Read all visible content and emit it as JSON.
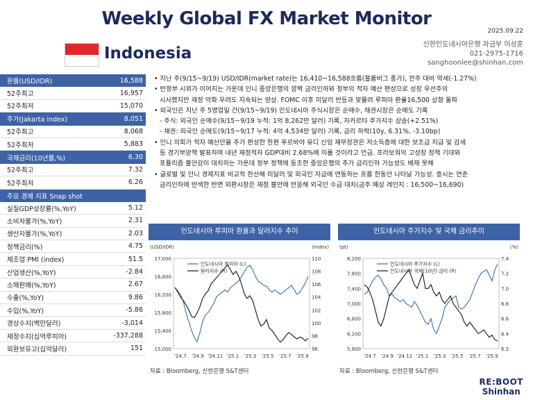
{
  "header": {
    "title": "Weekly Global FX Market Monitor",
    "date": "2025.09.22",
    "country": "Indonesia",
    "contact": [
      "신한인도네시아은행 자금부 이상훈",
      "021-2975-1716",
      "sanghoonlee@shinhan.com"
    ]
  },
  "left_table": [
    {
      "label": "환율(USD/IDR)",
      "value": "16,588",
      "head": true
    },
    {
      "label": "52주최고",
      "value": "16,957"
    },
    {
      "label": "52주최저",
      "value": "15,070"
    },
    {
      "label": "주가(Jakarta index)",
      "value": "8,051",
      "head": true
    },
    {
      "label": "52주최고",
      "value": "8,068"
    },
    {
      "label": "52주최저",
      "value": "5,883"
    },
    {
      "label": "국채금리(10년물,%)",
      "value": "6.30",
      "head": true
    },
    {
      "label": "52주최고",
      "value": "7.32"
    },
    {
      "label": "52주최저",
      "value": "6.26"
    },
    {
      "label": "주요 경제 지표 Snap shot",
      "value": "",
      "head": true
    },
    {
      "label": "실질GDP성장률(%,YoY)",
      "value": "5.12"
    },
    {
      "label": "소비자물가(%,YoY)",
      "value": "2.31"
    },
    {
      "label": "생산자물가(%,YoY)",
      "value": "2.03"
    },
    {
      "label": "정책금리(%)",
      "value": "4.75"
    },
    {
      "label": "제조업 PMI (index)",
      "value": "51.5"
    },
    {
      "label": "산업생산(%,YoY)",
      "value": "-2.84"
    },
    {
      "label": "소매판매(%,YoY)",
      "value": "2.67"
    },
    {
      "label": "수출(%,YoY)",
      "value": "9.86"
    },
    {
      "label": "수입(%,YoY)",
      "value": "-5.86"
    },
    {
      "label": "경상수지(백만달러)",
      "value": "-3,014"
    },
    {
      "label": "재정수지(십억루피아)",
      "value": "-337,288"
    },
    {
      "label": "외환보유고(십억달러)",
      "value": "151"
    }
  ],
  "bullets": [
    {
      "text": "• 지난 주(9/15~9/19) USD/IDR(market rate)는 16,410~16,588흐름(블룸버그 종가), 전주 대비 약세(-1.27%)",
      "indent": false
    },
    {
      "text": "• 반정부 시위가 이어지는 가운데 인니 중앙은행의 깜짝 금리인하와 정부의 적자 예산 편성으로 성장 우선주의",
      "indent": false
    },
    {
      "text": "시사했지만 재정 악화 우려도 지속되는 양상. FOMC 이후 미달러 반등과 맞물려 루피아 환율16,500 상향 돌파",
      "indent": true
    },
    {
      "text": "• 외국인은 지난 주 5영업일 간(9/15~9/19) 인도네시아 주식시장은 순매수, 채권시장은 순매도 기록",
      "indent": false
    },
    {
      "text": "- 주식: 외국인 순매수(9/15~9/19 누적: 1억 8,262만 달러) 기록, 자카르타 주가지수 상승(+2.51%)",
      "indent": true
    },
    {
      "text": "- 채권: 외국인 순매도(9/15~9/17 누적: 4억 4,534만 달러) 기록, 금리 하락(10y, 6.31%, -3.10bp)",
      "indent": true
    },
    {
      "text": "• 인니 의회가 적자 예산안을 추가 편성한 한편 푸르바야 유디 신임 재무장관은 저소득층에 대한 보조금 지급 및 감세",
      "indent": false
    },
    {
      "text": "등 경기부양책 발표하며 내년 재정적자 GDP대비 2.68%에 이를 것이라고 언급. 프라보워의 고성장 정책 기대와",
      "indent": true
    },
    {
      "text": "포퓰리즘 불안감이 대치하는 가운데 정부 정책에 동조한 중앙은행의 추가 금리인하 가능성도 배제 못해",
      "indent": true
    },
    {
      "text": "• 글로벌 및 인니 경제지표 비교적 한산해 미달러 및 외국인 자금에 연동하는 흐름 한동안 나타날 가능성. 증시는 연준",
      "indent": false
    },
    {
      "text": "금리인하에 반색한 반면 외환시장은 재정 불안에 반응해 외국인 수급 대치(금주 예상 레인지 : 16,500~16,690)",
      "indent": true
    }
  ],
  "chart_data": [
    {
      "type": "line",
      "title": "인도네시아 루피아 환율과 달러지수 추이",
      "ylabel_left": "(USD/IDR)",
      "ylabel_right": "(index)",
      "x_ticks": [
        "'24.7",
        "'24.9",
        "'24.11",
        "'25.1",
        "'25.3",
        "'25.5",
        "'25.7",
        "'25.9"
      ],
      "ylim_left": [
        15000,
        17000
      ],
      "yticks_left": [
        "17,000",
        "16,600",
        "16,200",
        "15,800",
        "15,400",
        "15,000"
      ],
      "ylim_right": [
        96,
        110
      ],
      "yticks_right": [
        "110",
        "108",
        "106",
        "104",
        "102",
        "100",
        "98",
        "96"
      ],
      "series": [
        {
          "name": "인도네시아 루피아 (L)",
          "color": "#2f6fb5",
          "axis": "left",
          "values": [
            16350,
            16280,
            16200,
            16050,
            15800,
            15600,
            15400,
            15250,
            15150,
            15350,
            15600,
            15750,
            15800,
            15900,
            16000,
            16150,
            16200,
            16250,
            16300,
            16250,
            16350,
            16400,
            16450,
            16500,
            16600,
            16700,
            16800,
            16850,
            16750,
            16600,
            16500,
            16450,
            16400,
            16380,
            16300,
            16250,
            16300,
            16250,
            16200,
            16250,
            16300,
            16350,
            16400,
            16300,
            16200,
            16250,
            16350,
            16450,
            16600
          ]
        },
        {
          "name": "달러지수 (R)",
          "color": "#111111",
          "axis": "right",
          "values": [
            105.5,
            104.8,
            104.0,
            103.5,
            102.8,
            102.0,
            101.0,
            100.8,
            101.5,
            102.5,
            103.8,
            104.5,
            105.0,
            106.0,
            106.5,
            107.0,
            107.5,
            108.0,
            108.5,
            109.0,
            108.2,
            107.5,
            108.0,
            107.2,
            106.0,
            104.5,
            103.8,
            104.2,
            103.5,
            102.0,
            100.5,
            99.5,
            99.8,
            100.5,
            99.2,
            98.8,
            98.2,
            97.5,
            97.0,
            97.4,
            98.0,
            98.5,
            98.2,
            97.8,
            97.5,
            97.8,
            97.6,
            97.2,
            97.6
          ]
        }
      ]
    },
    {
      "type": "line",
      "title": "인도네시아 주가지수 및 국채 금리추이",
      "ylabel_left": "(pt)",
      "ylabel_right": "(%)",
      "x_ticks": [
        "'24.7",
        "'24.9",
        "'24.11",
        "'25.1",
        "'25.3",
        "'25.5",
        "'25.7",
        "'25.9"
      ],
      "ylim_left": [
        5800,
        8200
      ],
      "yticks_left": [
        "8,200",
        "7,800",
        "7,400",
        "7,000",
        "6,600",
        "6,200",
        "5,800"
      ],
      "ylim_right": [
        6.2,
        7.4
      ],
      "yticks_right": [
        "7.4",
        "7.2",
        "7.0",
        "6.8",
        "6.6",
        "6.4",
        "6.2"
      ],
      "series": [
        {
          "name": "인도네시아 주가지수 (L)",
          "color": "#2f6fb5",
          "axis": "left",
          "values": [
            7250,
            7300,
            7450,
            7600,
            7700,
            7750,
            7650,
            7500,
            7400,
            7200,
            7250,
            7150,
            7100,
            7050,
            7100,
            7000,
            6950,
            6900,
            7050,
            6950,
            6800,
            6650,
            6500,
            6450,
            6600,
            6300,
            6200,
            6400,
            6600,
            6900,
            7000,
            7100,
            7150,
            7200,
            6900,
            6850,
            6900,
            7000,
            7100,
            7300,
            7500,
            7650,
            7800,
            7850,
            7900,
            7750,
            7600,
            7900,
            8050
          ]
        },
        {
          "name": "인도네시아 국채(10년) 금리 (R)",
          "color": "#111111",
          "axis": "right",
          "values": [
            7.05,
            7.02,
            6.95,
            6.85,
            6.7,
            6.55,
            6.5,
            6.6,
            6.75,
            6.9,
            6.95,
            7.0,
            7.05,
            7.1,
            7.15,
            7.2,
            7.25,
            7.15,
            7.05,
            7.0,
            7.1,
            7.2,
            7.0,
            7.0,
            7.05,
            6.95,
            6.9,
            6.95,
            6.85,
            6.8,
            6.85,
            6.9,
            6.8,
            6.75,
            6.7,
            6.65,
            6.55,
            6.5,
            6.55,
            6.5,
            6.45,
            6.4,
            6.42,
            6.45,
            6.4,
            6.35,
            6.38,
            6.32,
            6.3
          ]
        }
      ]
    }
  ],
  "source": [
    "자료 : Bloomberg, 신한은행 S&T센터",
    "자료 : Bloomberg, 신한은행 S&T센터"
  ],
  "logo": {
    "line1": "RE:BOOT",
    "line2": "Shinhan"
  }
}
